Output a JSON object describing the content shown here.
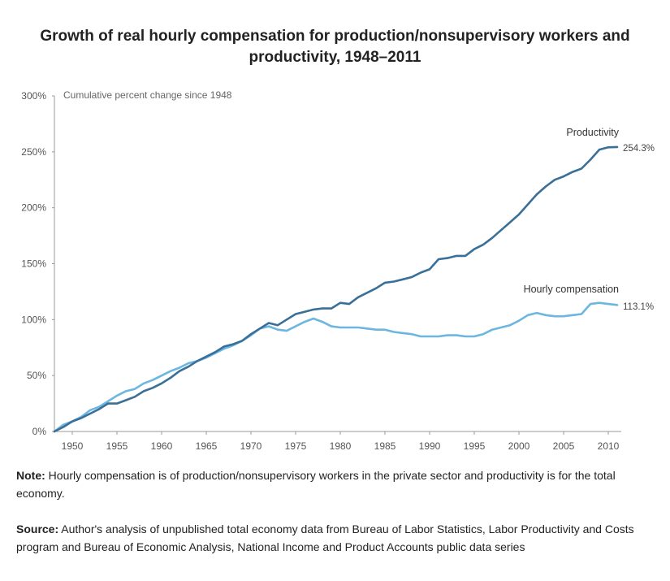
{
  "title_line1": "Growth of real hourly compensation for production/nonsupervisory workers and",
  "title_line2": "productivity, 1948–2011",
  "note": {
    "label": "Note:",
    "text": " Hourly compensation is of production/nonsupervisory workers in the private sector and productivity is for the total economy."
  },
  "source": {
    "label": "Source:",
    "text": " Author's analysis of unpublished total economy data from Bureau of Labor Statistics, Labor Productivity and Costs program and Bureau of Economic Analysis, National Income and Product Accounts public data series"
  },
  "chart_data": {
    "type": "line",
    "ylabel": "Cumulative percent change since 1948",
    "xlim": [
      1948,
      2011
    ],
    "ylim": [
      0,
      300
    ],
    "yticks": [
      0,
      50,
      100,
      150,
      200,
      250,
      300
    ],
    "ytick_labels": [
      "0%",
      "50%",
      "100%",
      "150%",
      "200%",
      "250%",
      "300%"
    ],
    "xticks": [
      1950,
      1955,
      1960,
      1965,
      1970,
      1975,
      1980,
      1985,
      1990,
      1995,
      2000,
      2005,
      2010
    ],
    "xtick_labels": [
      "1950",
      "1955",
      "1960",
      "1965",
      "1970",
      "1975",
      "1980",
      "1985",
      "1990",
      "1995",
      "2000",
      "2005",
      "2010"
    ],
    "grid": false,
    "legend": "labels at line ends",
    "series": [
      {
        "name": "Productivity",
        "color": "#3a6f98",
        "end_label": "254.3%",
        "x": [
          1948,
          1949,
          1950,
          1951,
          1952,
          1953,
          1954,
          1955,
          1956,
          1957,
          1958,
          1959,
          1960,
          1961,
          1962,
          1963,
          1964,
          1965,
          1966,
          1967,
          1968,
          1969,
          1970,
          1971,
          1972,
          1973,
          1974,
          1975,
          1976,
          1977,
          1978,
          1979,
          1980,
          1981,
          1982,
          1983,
          1984,
          1985,
          1986,
          1987,
          1988,
          1989,
          1990,
          1991,
          1992,
          1993,
          1994,
          1995,
          1996,
          1997,
          1998,
          1999,
          2000,
          2001,
          2002,
          2003,
          2004,
          2005,
          2006,
          2007,
          2008,
          2009,
          2010,
          2011
        ],
        "y": [
          0,
          4,
          9,
          12,
          16,
          20,
          25,
          25,
          28,
          31,
          36,
          39,
          43,
          48,
          54,
          58,
          63,
          67,
          71,
          76,
          78,
          81,
          87,
          92,
          97,
          95,
          100,
          105,
          107,
          109,
          110,
          110,
          115,
          114,
          120,
          124,
          128,
          133,
          134,
          136,
          138,
          142,
          145,
          154,
          155,
          157,
          157,
          163,
          167,
          173,
          180,
          187,
          194,
          203,
          212,
          219,
          225,
          228,
          232,
          235,
          243,
          252,
          254,
          254.3
        ]
      },
      {
        "name": "Hourly compensation",
        "color": "#6cb6e0",
        "end_label": "113.1%",
        "x": [
          1948,
          1949,
          1950,
          1951,
          1952,
          1953,
          1954,
          1955,
          1956,
          1957,
          1958,
          1959,
          1960,
          1961,
          1962,
          1963,
          1964,
          1965,
          1966,
          1967,
          1968,
          1969,
          1970,
          1971,
          1972,
          1973,
          1974,
          1975,
          1976,
          1977,
          1978,
          1979,
          1980,
          1981,
          1982,
          1983,
          1984,
          1985,
          1986,
          1987,
          1988,
          1989,
          1990,
          1991,
          1992,
          1993,
          1994,
          1995,
          1996,
          1997,
          1998,
          1999,
          2000,
          2001,
          2002,
          2003,
          2004,
          2005,
          2006,
          2007,
          2008,
          2009,
          2010,
          2011
        ],
        "y": [
          0,
          6,
          9,
          13,
          19,
          22,
          27,
          32,
          36,
          38,
          43,
          46,
          50,
          54,
          57,
          61,
          63,
          66,
          70,
          74,
          77,
          81,
          86,
          92,
          94,
          91,
          90,
          94,
          98,
          101,
          98,
          94,
          93,
          93,
          93,
          92,
          91,
          91,
          89,
          88,
          87,
          85,
          85,
          85,
          86,
          86,
          85,
          85,
          87,
          91,
          93,
          95,
          99,
          104,
          106,
          104,
          103,
          103,
          104,
          105,
          114,
          115,
          114,
          113.1
        ]
      }
    ]
  }
}
